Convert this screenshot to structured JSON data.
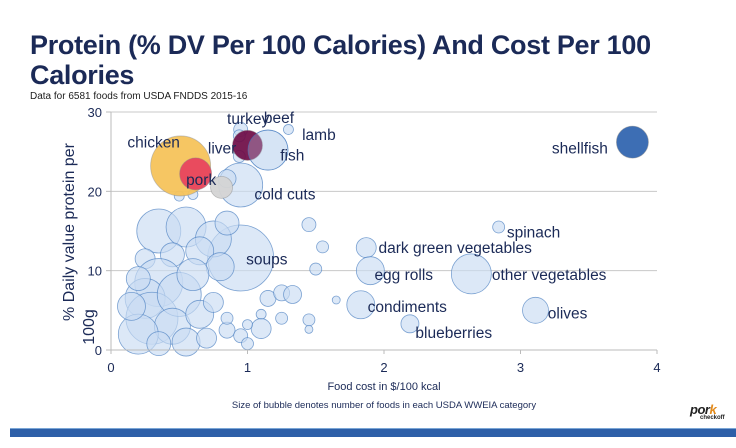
{
  "slide": {
    "title": "Protein (% DV Per 100 Calories) And Cost Per 100 Calories",
    "subtitle": "Data for 6581 foods from USDA FNDDS 2015-16",
    "footnote": "Size of bubble denotes number of foods in each USDA WWEIA category",
    "logo": {
      "word": "por",
      "accent": "k",
      "sub": "checkoff"
    },
    "colors": {
      "title": "#1b2a57",
      "footer_bar": "#2e5fa8"
    }
  },
  "chart_data": {
    "type": "scatter",
    "subtype": "bubble",
    "title": "Protein (% DV Per 100 Calories) And Cost Per 100 Calories",
    "xlabel": "Food cost in $/100 kcal",
    "ylabel": "% Daily value protein per 100g",
    "xlim": [
      0,
      4
    ],
    "ylim": [
      0,
      30
    ],
    "xticks": [
      "0",
      "1",
      "2",
      "3",
      "4"
    ],
    "yticks": [
      "0",
      "10",
      "20",
      "30"
    ],
    "grid": "horizontal",
    "legend": "none",
    "colors": {
      "default_fill": "#c9dcf2",
      "default_stroke": "#4a7fc1",
      "chicken": "#f6c35b",
      "pork": "#e8455e",
      "liver": "#6e0b45",
      "shellfish": "#3366b0",
      "gray": "#d4d4d4",
      "label": "#1b2a57"
    },
    "highlighted": [
      {
        "name": "chicken",
        "x": 0.51,
        "y": 23.2,
        "size": 30,
        "color": "#f6c35b"
      },
      {
        "name": "pork",
        "x": 0.62,
        "y": 22.2,
        "size": 16,
        "color": "#e8455e"
      },
      {
        "name": "liver",
        "x": 1.0,
        "y": 25.8,
        "size": 15,
        "color": "#6e0b45"
      },
      {
        "name": "shellfish",
        "x": 3.82,
        "y": 26.2,
        "size": 16,
        "color": "#3366b0"
      },
      {
        "name": "gray",
        "x": 0.81,
        "y": 20.5,
        "size": 11,
        "color": "#d4d4d4"
      }
    ],
    "bubbles": [
      {
        "x": 1.15,
        "y": 25.2,
        "size": 20
      },
      {
        "x": 0.95,
        "y": 20.8,
        "size": 22
      },
      {
        "x": 0.95,
        "y": 27.8,
        "size": 7
      },
      {
        "x": 1.3,
        "y": 27.8,
        "size": 5
      },
      {
        "x": 0.94,
        "y": 27.0,
        "size": 6
      },
      {
        "x": 0.94,
        "y": 24.4,
        "size": 6
      },
      {
        "x": 0.85,
        "y": 21.6,
        "size": 9
      },
      {
        "x": 0.5,
        "y": 19.4,
        "size": 5
      },
      {
        "x": 0.6,
        "y": 19.6,
        "size": 5
      },
      {
        "x": 0.95,
        "y": 11.6,
        "size": 33
      },
      {
        "x": 2.84,
        "y": 15.5,
        "size": 6
      },
      {
        "x": 1.87,
        "y": 12.9,
        "size": 10
      },
      {
        "x": 1.9,
        "y": 10.0,
        "size": 14
      },
      {
        "x": 2.64,
        "y": 9.6,
        "size": 20
      },
      {
        "x": 1.83,
        "y": 5.7,
        "size": 14
      },
      {
        "x": 3.11,
        "y": 5.0,
        "size": 13
      },
      {
        "x": 2.19,
        "y": 3.3,
        "size": 9
      },
      {
        "x": 1.45,
        "y": 15.8,
        "size": 7
      },
      {
        "x": 1.55,
        "y": 13.0,
        "size": 6
      },
      {
        "x": 1.5,
        "y": 10.2,
        "size": 6
      },
      {
        "x": 1.65,
        "y": 6.3,
        "size": 4
      },
      {
        "x": 1.45,
        "y": 3.8,
        "size": 6
      },
      {
        "x": 1.45,
        "y": 2.6,
        "size": 4
      },
      {
        "x": 0.35,
        "y": 15.0,
        "size": 22
      },
      {
        "x": 0.55,
        "y": 15.5,
        "size": 20
      },
      {
        "x": 0.75,
        "y": 14.0,
        "size": 18
      },
      {
        "x": 0.85,
        "y": 16.0,
        "size": 12
      },
      {
        "x": 0.65,
        "y": 12.5,
        "size": 14
      },
      {
        "x": 0.45,
        "y": 12.0,
        "size": 12
      },
      {
        "x": 0.25,
        "y": 11.5,
        "size": 10
      },
      {
        "x": 0.8,
        "y": 10.5,
        "size": 14
      },
      {
        "x": 0.35,
        "y": 8.5,
        "size": 24
      },
      {
        "x": 0.25,
        "y": 6.5,
        "size": 20
      },
      {
        "x": 0.3,
        "y": 4.0,
        "size": 26
      },
      {
        "x": 0.5,
        "y": 7.0,
        "size": 22
      },
      {
        "x": 0.45,
        "y": 3.0,
        "size": 18
      },
      {
        "x": 0.2,
        "y": 2.0,
        "size": 20
      },
      {
        "x": 0.55,
        "y": 1.0,
        "size": 14
      },
      {
        "x": 0.65,
        "y": 4.5,
        "size": 14
      },
      {
        "x": 0.75,
        "y": 6.0,
        "size": 10
      },
      {
        "x": 0.85,
        "y": 2.5,
        "size": 8
      },
      {
        "x": 0.95,
        "y": 1.8,
        "size": 7
      },
      {
        "x": 0.35,
        "y": 0.8,
        "size": 12
      },
      {
        "x": 0.15,
        "y": 5.5,
        "size": 14
      },
      {
        "x": 0.6,
        "y": 9.5,
        "size": 16
      },
      {
        "x": 0.2,
        "y": 9.0,
        "size": 12
      },
      {
        "x": 1.15,
        "y": 6.5,
        "size": 8
      },
      {
        "x": 1.25,
        "y": 7.2,
        "size": 8
      },
      {
        "x": 1.33,
        "y": 7.0,
        "size": 9
      },
      {
        "x": 1.1,
        "y": 4.5,
        "size": 5
      },
      {
        "x": 1.1,
        "y": 2.7,
        "size": 10
      },
      {
        "x": 1.25,
        "y": 4.0,
        "size": 6
      },
      {
        "x": 0.85,
        "y": 4.0,
        "size": 6
      },
      {
        "x": 1.0,
        "y": 3.2,
        "size": 5
      },
      {
        "x": 0.7,
        "y": 1.5,
        "size": 10
      },
      {
        "x": 1.0,
        "y": 0.8,
        "size": 6
      }
    ],
    "labels": [
      {
        "text": "turkey",
        "x": 0.85,
        "y": 28.5
      },
      {
        "text": "beef",
        "x": 1.12,
        "y": 28.6
      },
      {
        "text": "lamb",
        "x": 1.4,
        "y": 26.5
      },
      {
        "text": "chicken",
        "x": 0.12,
        "y": 25.5
      },
      {
        "text": "liver",
        "x": 0.71,
        "y": 24.8
      },
      {
        "text": "fish",
        "x": 1.24,
        "y": 23.9
      },
      {
        "text": "pork",
        "x": 0.55,
        "y": 20.8
      },
      {
        "text": "cold cuts",
        "x": 1.05,
        "y": 19.0
      },
      {
        "text": "shellfish",
        "x": 3.23,
        "y": 24.8
      },
      {
        "text": "soups",
        "x": 0.99,
        "y": 10.8
      },
      {
        "text": "spinach",
        "x": 2.9,
        "y": 14.2
      },
      {
        "text": "dark green vegetables",
        "x": 1.96,
        "y": 12.2
      },
      {
        "text": "egg rolls",
        "x": 1.93,
        "y": 8.8
      },
      {
        "text": "other vegetables",
        "x": 2.79,
        "y": 8.8
      },
      {
        "text": "condiments",
        "x": 1.88,
        "y": 4.8
      },
      {
        "text": "olives",
        "x": 3.2,
        "y": 4.0
      },
      {
        "text": "blueberries",
        "x": 2.23,
        "y": 1.5
      }
    ]
  }
}
